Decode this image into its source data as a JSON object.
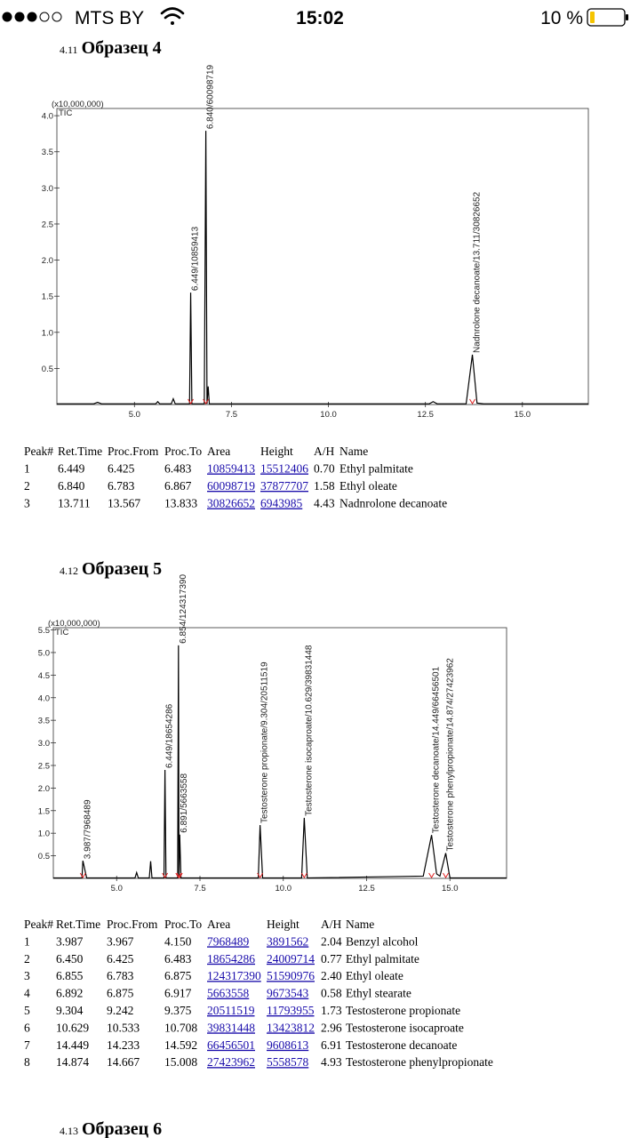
{
  "status_bar": {
    "carrier": "MTS BY",
    "time": "15:02",
    "battery": "10 %"
  },
  "sections": [
    {
      "number": "4.11",
      "title": "Образец 4",
      "table": {
        "header": [
          "Peak#",
          "Ret.Time",
          "Proc.From",
          "Proc.To",
          "Area",
          "Height",
          "A/H",
          "Name"
        ],
        "rows": [
          [
            "1",
            "6.449",
            "6.425",
            "6.483",
            "10859413",
            "15512406",
            "0.70",
            "Ethyl palmitate"
          ],
          [
            "2",
            "6.840",
            "6.783",
            "6.867",
            "60098719",
            "37877707",
            "1.58",
            "Ethyl oleate"
          ],
          [
            "3",
            "13.711",
            "13.567",
            "13.833",
            "30826652",
            "6943985",
            "4.43",
            "Nadnrolone decanoate"
          ]
        ]
      }
    },
    {
      "number": "4.12",
      "title": "Образец 5",
      "table": {
        "header": [
          "Peak#",
          "Ret.Time",
          "Proc.From",
          "Proc.To",
          "Area",
          "Height",
          "A/H",
          "Name"
        ],
        "rows": [
          [
            "1",
            "3.987",
            "3.967",
            "4.150",
            "7968489",
            "3891562",
            "2.04",
            "Benzyl alcohol"
          ],
          [
            "2",
            "6.450",
            "6.425",
            "6.483",
            "18654286",
            "24009714",
            "0.77",
            "Ethyl palmitate"
          ],
          [
            "3",
            "6.855",
            "6.783",
            "6.875",
            "124317390",
            "51590976",
            "2.40",
            "Ethyl oleate"
          ],
          [
            "4",
            "6.892",
            "6.875",
            "6.917",
            "5663558",
            "9673543",
            "0.58",
            "Ethyl stearate"
          ],
          [
            "5",
            "9.304",
            "9.242",
            "9.375",
            "20511519",
            "11793955",
            "1.73",
            "Testosterone propionate"
          ],
          [
            "6",
            "10.629",
            "10.533",
            "10.708",
            "39831448",
            "13423812",
            "2.96",
            "Testosterone isocaproate"
          ],
          [
            "7",
            "14.449",
            "14.233",
            "14.592",
            "66456501",
            "9608613",
            "6.91",
            "Testosterone decanoate"
          ],
          [
            "8",
            "14.874",
            "14.667",
            "15.008",
            "27423962",
            "5558578",
            "4.93",
            "Testosterone phenylpropionate"
          ]
        ]
      }
    },
    {
      "number": "4.13",
      "title": "Образец 6"
    }
  ],
  "chart_data": [
    {
      "type": "line",
      "y_multiplier": "(x10,000,000)",
      "trace_label": "TIC",
      "color": "#000000",
      "x": [
        3.0,
        3.95,
        4.05,
        4.15,
        5.55,
        5.6,
        5.65,
        5.95,
        6.0,
        6.05,
        6.42,
        6.449,
        6.48,
        6.8,
        6.84,
        6.87,
        6.9,
        6.93,
        12.6,
        12.7,
        12.8,
        13.55,
        13.711,
        13.83,
        14.0,
        16.7
      ],
      "values": [
        0.01,
        0.01,
        0.03,
        0.01,
        0.01,
        0.04,
        0.01,
        0.01,
        0.08,
        0.01,
        0.01,
        1.55,
        0.01,
        0.01,
        3.79,
        0.01,
        0.25,
        0.01,
        0.01,
        0.04,
        0.01,
        0.01,
        0.69,
        0.02,
        0.01,
        0.01
      ],
      "xlim": [
        3.0,
        16.7
      ],
      "ylim": [
        0,
        4.1
      ],
      "xticks": [
        {
          "value": 5,
          "label": "5.0"
        },
        7.5,
        {
          "value": 10,
          "label": "10.0"
        },
        12.5,
        {
          "value": 15,
          "label": "15.0"
        }
      ],
      "yticks": [
        0.5,
        {
          "value": 1,
          "label": "1.0"
        },
        1.5,
        {
          "value": 2,
          "label": "2.0"
        },
        2.5,
        {
          "value": 3,
          "label": "3.0"
        },
        3.5,
        {
          "value": 4,
          "label": "4.0"
        }
      ],
      "annotations": [
        {
          "x": 6.449,
          "text": "6.449/10859413"
        },
        {
          "x": 6.84,
          "text": "6.840/60098719"
        },
        {
          "x": 13.711,
          "text": "Nadnrolone decanoate/13.711/30826652"
        }
      ]
    },
    {
      "type": "line",
      "y_multiplier": "(x10,000,000)",
      "trace_label": "TIC",
      "color": "#000000",
      "x": [
        3.1,
        3.96,
        3.987,
        4.1,
        5.55,
        5.6,
        5.65,
        5.98,
        6.02,
        6.06,
        6.42,
        6.45,
        6.48,
        6.83,
        6.855,
        6.87,
        6.892,
        6.93,
        9.25,
        9.304,
        9.38,
        10.55,
        10.629,
        10.72,
        14.2,
        14.449,
        14.6,
        14.7,
        14.874,
        15.0,
        16.7
      ],
      "values": [
        0.01,
        0.01,
        0.39,
        0.01,
        0.01,
        0.13,
        0.01,
        0.01,
        0.38,
        0.01,
        0.01,
        2.4,
        0.01,
        0.01,
        5.16,
        0.05,
        0.97,
        0.01,
        0.01,
        1.18,
        0.01,
        0.01,
        1.34,
        0.01,
        0.05,
        0.96,
        0.1,
        0.05,
        0.56,
        0.01,
        0.01
      ],
      "xlim": [
        3.1,
        16.7
      ],
      "ylim": [
        0,
        5.55
      ],
      "xticks": [
        {
          "value": 5,
          "label": "5.0"
        },
        7.5,
        {
          "value": 10,
          "label": "10.0"
        },
        12.5,
        {
          "value": 15,
          "label": "15.0"
        }
      ],
      "yticks": [
        0.5,
        {
          "value": 1,
          "label": "1.0"
        },
        1.5,
        {
          "value": 2,
          "label": "2.0"
        },
        2.5,
        {
          "value": 3,
          "label": "3.0"
        },
        3.5,
        {
          "value": 4,
          "label": "4.0"
        },
        4.5,
        {
          "value": 5,
          "label": "5.0"
        },
        5.5
      ],
      "annotations": [
        {
          "x": 3.987,
          "text": "3.987/7968489"
        },
        {
          "x": 6.45,
          "text": "6.449/18654286"
        },
        {
          "x": 6.855,
          "text": "6.854/124317390"
        },
        {
          "x": 6.892,
          "text": "6.891/5663558"
        },
        {
          "x": 9.304,
          "text": "Testosterone propionate/9.304/20511519"
        },
        {
          "x": 10.629,
          "text": "Testosterone isocaproate/10.629/39831448"
        },
        {
          "x": 14.449,
          "text": "Testosterone decanoate/14.449/66456501"
        },
        {
          "x": 14.874,
          "text": "Testosterone phenylpropionate/14.874/27423962"
        }
      ]
    }
  ]
}
